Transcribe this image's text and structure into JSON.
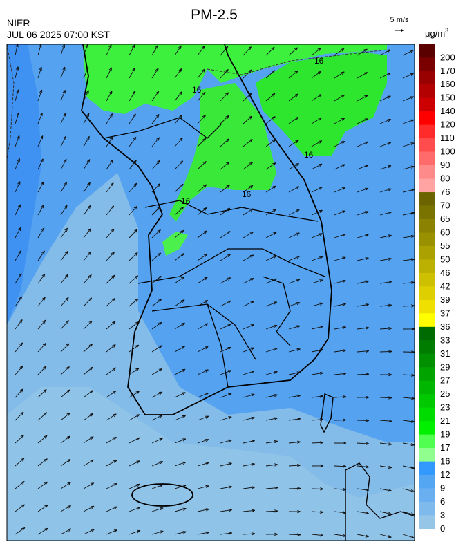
{
  "header": {
    "title": "PM-2.5",
    "agency": "NIER",
    "datetime": "JUL 06 2025 07:00 KST",
    "wind_scale": "5 m/s",
    "unit": "μg/m",
    "unit_exponent": "3"
  },
  "contour_labels": [
    "16",
    "16",
    "16",
    "16",
    "16"
  ],
  "colorbar": {
    "labels": [
      "200",
      "170",
      "160",
      "150",
      "140",
      "120",
      "110",
      "100",
      "90",
      "80",
      "76",
      "70",
      "65",
      "60",
      "55",
      "50",
      "46",
      "42",
      "39",
      "37",
      "36",
      "33",
      "31",
      "29",
      "27",
      "25",
      "23",
      "21",
      "19",
      "17",
      "16",
      "12",
      "9",
      "6",
      "3",
      "0"
    ],
    "colors": [
      "#5a0000",
      "#7a0000",
      "#990000",
      "#b30000",
      "#cc0000",
      "#ff0000",
      "#ff2a2a",
      "#ff4d4d",
      "#ff6b6b",
      "#ff8a8a",
      "#ffa3a3",
      "#6b6400",
      "#7a7300",
      "#8a8200",
      "#9a9100",
      "#aba100",
      "#bcb000",
      "#cdc000",
      "#ded000",
      "#efe000",
      "#ffff00",
      "#006b00",
      "#007d00",
      "#009000",
      "#00a300",
      "#00b600",
      "#00c900",
      "#00dc00",
      "#00f000",
      "#50ff50",
      "#90ff90",
      "#3399ff",
      "#55a6f2",
      "#6aaff0",
      "#7fbaec",
      "#95c6e8"
    ]
  }
}
